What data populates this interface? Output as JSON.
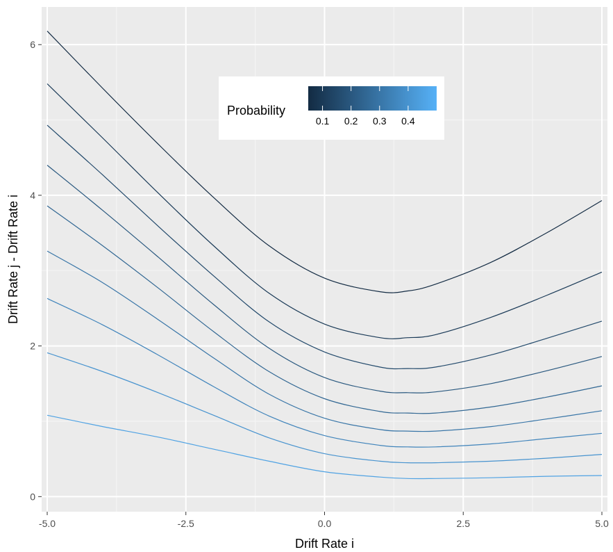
{
  "chart_data": {
    "type": "line",
    "title": "",
    "xlabel": "Drift Rate i",
    "ylabel": "Drift Rate j - Drift Rate i",
    "xlim": [
      -5.1,
      5.1
    ],
    "ylim": [
      -0.2,
      6.5
    ],
    "x_ticks": [
      -5.0,
      -2.5,
      0.0,
      2.5,
      5.0
    ],
    "x_tick_labels": [
      "-5.0",
      "-2.5",
      "0.0",
      "2.5",
      "5.0"
    ],
    "y_ticks": [
      0,
      2,
      4,
      6
    ],
    "y_tick_labels": [
      "0",
      "2",
      "4",
      "6"
    ],
    "grid": true,
    "legend": {
      "title": "Probability",
      "placement": "top-center inside",
      "type": "colorbar",
      "range": [
        0.05,
        0.5
      ],
      "ticks": [
        0.1,
        0.2,
        0.3,
        0.4
      ],
      "tick_labels": [
        "0.1",
        "0.2",
        "0.3",
        "0.4"
      ],
      "colors": [
        "#132B43",
        "#56B1F7"
      ]
    },
    "series": [
      {
        "probability": 0.05,
        "x": [
          -5,
          -4,
          -3,
          -2,
          -1,
          0,
          1,
          1.5,
          2,
          3,
          4,
          5
        ],
        "y": [
          6.18,
          5.42,
          4.68,
          3.97,
          3.33,
          2.9,
          2.72,
          2.73,
          2.82,
          3.11,
          3.5,
          3.93
        ]
      },
      {
        "probability": 0.1,
        "x": [
          -5,
          -4,
          -3,
          -2,
          -1,
          0,
          1,
          1.5,
          2,
          3,
          4,
          5
        ],
        "y": [
          5.48,
          4.76,
          4.03,
          3.33,
          2.7,
          2.29,
          2.11,
          2.11,
          2.15,
          2.38,
          2.67,
          2.98
        ]
      },
      {
        "probability": 0.15,
        "x": [
          -5,
          -4,
          -3,
          -2,
          -1,
          0,
          1,
          1.5,
          2,
          3,
          4,
          5
        ],
        "y": [
          4.93,
          4.27,
          3.59,
          2.93,
          2.32,
          1.92,
          1.72,
          1.7,
          1.72,
          1.88,
          2.1,
          2.33
        ]
      },
      {
        "probability": 0.2,
        "x": [
          -5,
          -4,
          -3,
          -2,
          -1,
          0,
          1,
          1.5,
          2,
          3,
          4,
          5
        ],
        "y": [
          4.4,
          3.8,
          3.18,
          2.55,
          1.97,
          1.58,
          1.4,
          1.38,
          1.39,
          1.5,
          1.67,
          1.86
        ]
      },
      {
        "probability": 0.25,
        "x": [
          -5,
          -4,
          -3,
          -2,
          -1,
          0,
          1,
          1.5,
          2,
          3,
          4,
          5
        ],
        "y": [
          3.86,
          3.33,
          2.77,
          2.19,
          1.66,
          1.3,
          1.13,
          1.11,
          1.11,
          1.19,
          1.32,
          1.47
        ]
      },
      {
        "probability": 0.3,
        "x": [
          -5,
          -4,
          -3,
          -2,
          -1,
          0,
          1,
          1.5,
          2,
          3,
          4,
          5
        ],
        "y": [
          3.26,
          2.84,
          2.35,
          1.84,
          1.36,
          1.04,
          0.89,
          0.87,
          0.87,
          0.93,
          1.03,
          1.14
        ]
      },
      {
        "probability": 0.35,
        "x": [
          -5,
          -4,
          -3,
          -2,
          -1,
          0,
          1,
          1.5,
          2,
          3,
          4,
          5
        ],
        "y": [
          2.63,
          2.28,
          1.88,
          1.46,
          1.07,
          0.81,
          0.68,
          0.66,
          0.66,
          0.7,
          0.77,
          0.84
        ]
      },
      {
        "probability": 0.4,
        "x": [
          -5,
          -4,
          -3,
          -2,
          -1,
          0,
          1,
          1.5,
          2,
          3,
          4,
          5
        ],
        "y": [
          1.91,
          1.66,
          1.38,
          1.08,
          0.78,
          0.57,
          0.47,
          0.45,
          0.45,
          0.47,
          0.51,
          0.56
        ]
      },
      {
        "probability": 0.45,
        "x": [
          -5,
          -4,
          -3,
          -2,
          -1,
          0,
          1,
          1.5,
          2,
          3,
          4,
          5
        ],
        "y": [
          1.08,
          0.93,
          0.79,
          0.63,
          0.47,
          0.33,
          0.26,
          0.24,
          0.24,
          0.25,
          0.27,
          0.28
        ]
      }
    ]
  }
}
